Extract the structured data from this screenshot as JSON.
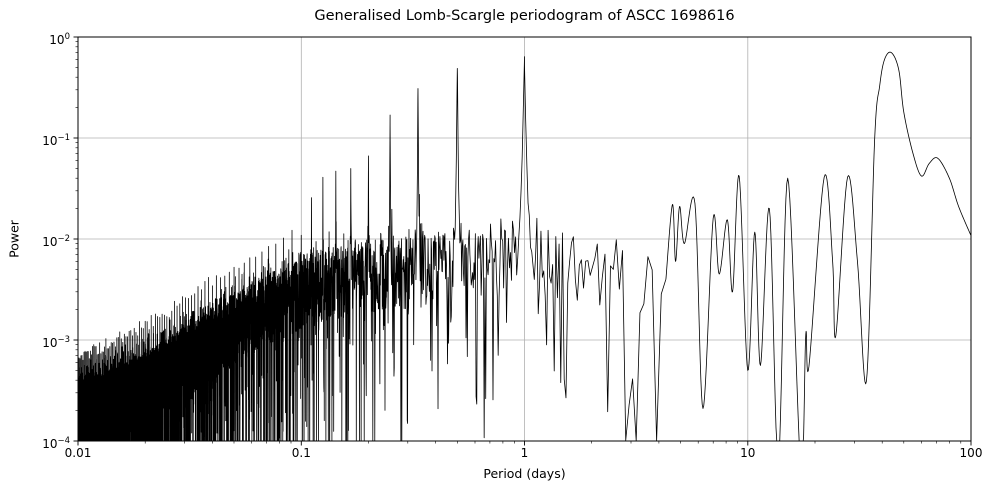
{
  "chart_data": {
    "type": "line",
    "title": "Generalised Lomb-Scargle periodogram of ASCC 1698616",
    "xlabel": "Period (days)",
    "ylabel": "Power",
    "xscale": "log",
    "yscale": "log",
    "xlim": [
      0.01,
      100
    ],
    "ylim": [
      0.0001,
      1
    ],
    "grid": true,
    "legend": false,
    "line_color": "#000000",
    "grid_color": "#b0b0b0",
    "background_color": "#ffffff",
    "x_ticks": [
      {
        "label": "0.01",
        "value": 0.01
      },
      {
        "label": "0.1",
        "value": 0.1
      },
      {
        "label": "1",
        "value": 1
      },
      {
        "label": "10",
        "value": 10
      },
      {
        "label": "100",
        "value": 100
      }
    ],
    "y_ticks": [
      {
        "base": "10",
        "exp": "0",
        "value": 1
      },
      {
        "base": "10",
        "exp": "−1",
        "value": 0.1
      },
      {
        "base": "10",
        "exp": "−2",
        "value": 0.01
      },
      {
        "base": "10",
        "exp": "−3",
        "value": 0.001
      },
      {
        "base": "10",
        "exp": "−4",
        "value": 0.0001
      }
    ],
    "strongest_peak": {
      "period_days": 44,
      "power": 0.7
    },
    "alias_peaks": [
      {
        "frequency_cpd": 1,
        "period_days": 1.0,
        "power": 0.63
      },
      {
        "frequency_cpd": 2,
        "period_days": 0.5,
        "power": 0.5
      },
      {
        "frequency_cpd": 3,
        "period_days": 0.333,
        "power": 0.32
      },
      {
        "frequency_cpd": 4,
        "period_days": 0.25,
        "power": 0.169
      },
      {
        "frequency_cpd": 5,
        "period_days": 0.2,
        "power": 0.067
      },
      {
        "frequency_cpd": 6,
        "period_days": 0.167,
        "power": 0.049
      },
      {
        "frequency_cpd": 7,
        "period_days": 0.143,
        "power": 0.047
      },
      {
        "frequency_cpd": 8,
        "period_days": 0.125,
        "power": 0.04
      },
      {
        "frequency_cpd": 9,
        "period_days": 0.111,
        "power": 0.026
      }
    ],
    "noise_envelope": {
      "description": "upper envelope of the dense alias forest versus frequency f in cycles/day",
      "max_power_formula": "0.018/(1+(f/11)^2)+0.0004",
      "floor_power": 0.0001
    },
    "long_period_curve": [
      [
        4.3,
        0.004
      ],
      [
        4.6,
        0.022
      ],
      [
        4.75,
        0.006
      ],
      [
        4.95,
        0.021
      ],
      [
        5.2,
        0.009
      ],
      [
        5.8,
        0.0225
      ],
      [
        6.3,
        0.00021
      ],
      [
        7.0,
        0.016
      ],
      [
        7.45,
        0.0045
      ],
      [
        8.1,
        0.0155
      ],
      [
        8.55,
        0.003
      ],
      [
        9.15,
        0.042
      ],
      [
        10.0,
        0.0005
      ],
      [
        10.75,
        0.0117
      ],
      [
        11.4,
        0.00056
      ],
      [
        12.5,
        0.02
      ],
      [
        13.7,
        6e-05
      ],
      [
        15.1,
        0.04
      ],
      [
        17.3,
        5e-05
      ],
      [
        18.2,
        0.00115
      ],
      [
        18.8,
        0.00055
      ],
      [
        22,
        0.041
      ],
      [
        24,
        0.006
      ],
      [
        24.8,
        0.0011
      ],
      [
        28,
        0.041
      ],
      [
        31,
        0.006
      ],
      [
        34,
        0.00039
      ],
      [
        37,
        0.095
      ],
      [
        39,
        0.33
      ],
      [
        41,
        0.6
      ],
      [
        44,
        0.7
      ],
      [
        47.5,
        0.47
      ],
      [
        50,
        0.18
      ],
      [
        55,
        0.07
      ],
      [
        60,
        0.042
      ],
      [
        65,
        0.056
      ],
      [
        71,
        0.063
      ],
      [
        80,
        0.04
      ],
      [
        88,
        0.021
      ],
      [
        100,
        0.0108
      ]
    ]
  }
}
